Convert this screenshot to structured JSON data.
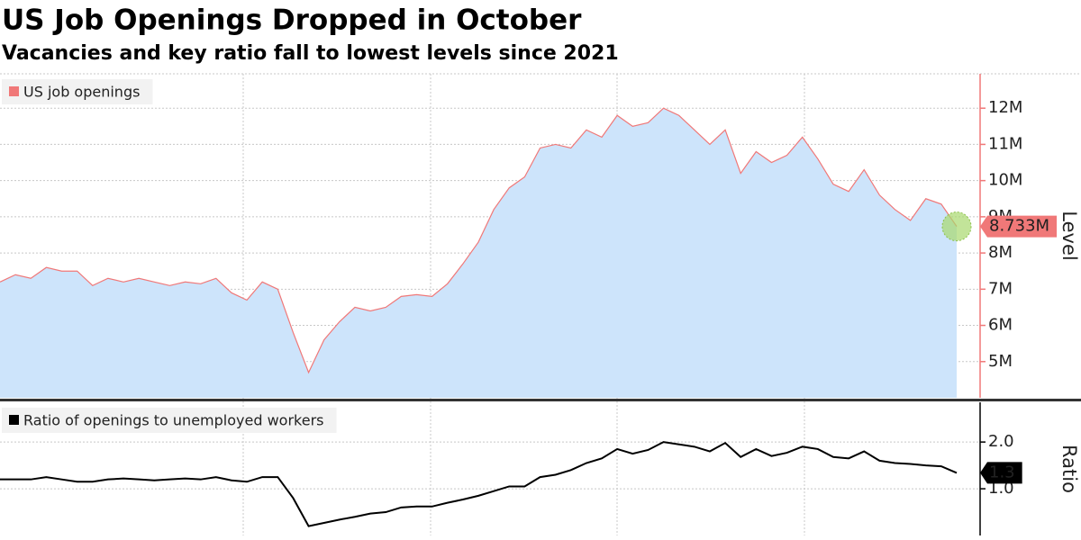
{
  "chart_data": [
    {
      "type": "area",
      "title": "US Job Openings Dropped in October",
      "subtitle": "Vacancies and key ratio fall to lowest levels since 2021",
      "y_label": "Level",
      "series": [
        {
          "name": "US job openings",
          "color": "#f07878",
          "fill": "#cde4fb",
          "values": [
            7.2,
            7.4,
            7.3,
            7.6,
            7.5,
            7.5,
            7.1,
            7.3,
            7.2,
            7.3,
            7.2,
            7.1,
            7.2,
            7.15,
            7.3,
            6.9,
            6.7,
            7.2,
            7.0,
            5.8,
            4.7,
            5.6,
            6.1,
            6.5,
            6.4,
            6.5,
            6.8,
            6.85,
            6.8,
            7.15,
            7.7,
            8.3,
            9.2,
            9.8,
            10.1,
            10.9,
            11.0,
            10.9,
            11.4,
            11.2,
            11.8,
            11.5,
            11.6,
            12.0,
            11.8,
            11.4,
            11.0,
            11.4,
            10.2,
            10.8,
            10.5,
            10.7,
            11.2,
            10.6,
            9.9,
            9.7,
            10.3,
            9.6,
            9.2,
            8.9,
            9.5,
            9.35,
            8.733
          ],
          "value_labels": [
            null,
            null,
            null,
            null,
            null,
            null,
            null,
            null,
            null,
            null,
            null,
            null,
            null,
            null,
            null,
            null,
            null,
            null,
            null,
            null,
            null,
            null,
            null,
            null,
            null,
            null,
            null,
            null,
            null,
            null,
            null,
            null,
            null,
            null,
            null,
            null,
            null,
            null,
            null,
            null,
            null,
            null,
            null,
            null,
            null,
            null,
            null,
            null,
            null,
            null,
            null,
            null,
            null,
            null,
            null,
            null,
            null,
            null,
            null,
            null,
            null,
            null,
            "8.733M"
          ]
        }
      ],
      "ylim": [
        4,
        12.95
      ],
      "yticks": [
        {
          "value": 5,
          "label": "5M"
        },
        {
          "value": 6,
          "label": "6M"
        },
        {
          "value": 7,
          "label": "7M"
        },
        {
          "value": 8,
          "label": "8M"
        },
        {
          "value": 9,
          "label": "9M"
        },
        {
          "value": 10,
          "label": "10M"
        },
        {
          "value": 11,
          "label": "11M"
        },
        {
          "value": 12,
          "label": "12M"
        }
      ],
      "axis_color": "#f07878",
      "grid": true
    },
    {
      "type": "line",
      "y_label": "Ratio",
      "series": [
        {
          "name": "Ratio of openings to unemployed workers",
          "color": "#000000",
          "values": [
            1.2,
            1.2,
            1.2,
            1.25,
            1.2,
            1.15,
            1.15,
            1.2,
            1.22,
            1.2,
            1.18,
            1.2,
            1.22,
            1.2,
            1.25,
            1.18,
            1.15,
            1.25,
            1.25,
            0.8,
            0.2,
            0.27,
            0.34,
            0.4,
            0.47,
            0.5,
            0.6,
            0.62,
            0.62,
            0.7,
            0.77,
            0.85,
            0.95,
            1.05,
            1.05,
            1.25,
            1.3,
            1.4,
            1.55,
            1.65,
            1.85,
            1.75,
            1.83,
            2.0,
            1.95,
            1.9,
            1.8,
            1.98,
            1.68,
            1.85,
            1.7,
            1.77,
            1.9,
            1.85,
            1.68,
            1.65,
            1.8,
            1.6,
            1.55,
            1.53,
            1.5,
            1.48,
            1.34
          ],
          "value_labels": [
            null,
            null,
            null,
            null,
            null,
            null,
            null,
            null,
            null,
            null,
            null,
            null,
            null,
            null,
            null,
            null,
            null,
            null,
            null,
            null,
            null,
            null,
            null,
            null,
            null,
            null,
            null,
            null,
            null,
            null,
            null,
            null,
            null,
            null,
            null,
            null,
            null,
            null,
            null,
            null,
            null,
            null,
            null,
            null,
            null,
            null,
            null,
            null,
            null,
            null,
            null,
            null,
            null,
            null,
            null,
            null,
            null,
            null,
            null,
            null,
            null,
            null,
            "1.3"
          ]
        }
      ],
      "ylim": [
        0,
        2.85
      ],
      "yticks": [
        {
          "value": 1,
          "label": "1.0"
        },
        {
          "value": 2,
          "label": "2.0"
        }
      ],
      "axis_color": "#000000",
      "grid": true
    }
  ]
}
